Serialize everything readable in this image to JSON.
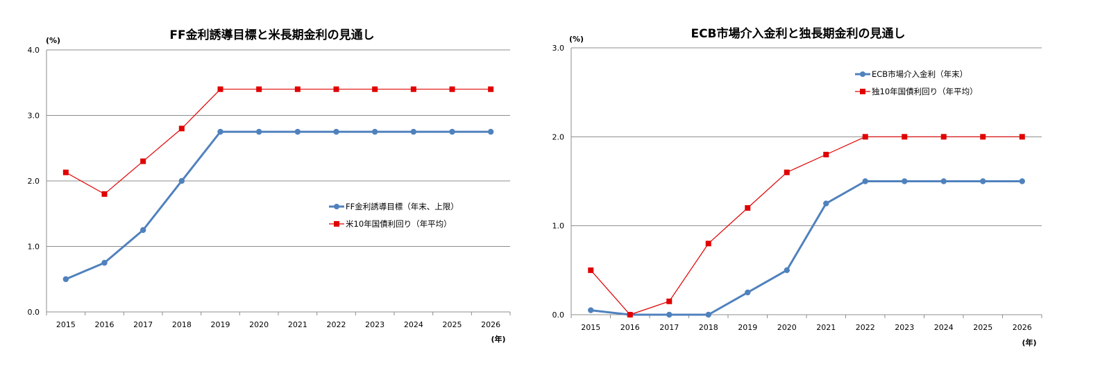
{
  "chart_data": [
    {
      "type": "line",
      "title": "FF金利誘導目標と米長期金利の見通し",
      "yunit": "(%)",
      "xunit": "(年)",
      "ylim": [
        0,
        4
      ],
      "yticks": [
        "0.0",
        "1.0",
        "2.0",
        "3.0",
        "4.0"
      ],
      "grid": true,
      "legend_position": "right-middle",
      "categories": [
        "2015",
        "2016",
        "2017",
        "2018",
        "2019",
        "2020",
        "2021",
        "2022",
        "2023",
        "2024",
        "2025",
        "2026"
      ],
      "series": [
        {
          "name": "FF金利誘導目標（年末、上限）",
          "color": "#4f81bd",
          "marker": "circle",
          "values": [
            0.5,
            0.75,
            1.25,
            2.0,
            2.75,
            2.75,
            2.75,
            2.75,
            2.75,
            2.75,
            2.75,
            2.75
          ]
        },
        {
          "name": "米10年国債利回り（年平均）",
          "color": "#e00000",
          "marker": "square",
          "values": [
            2.13,
            1.8,
            2.3,
            2.8,
            3.4,
            3.4,
            3.4,
            3.4,
            3.4,
            3.4,
            3.4,
            3.4
          ]
        }
      ]
    },
    {
      "type": "line",
      "title": "ECB市場介入金利と独長期金利の見通し",
      "yunit": "(%)",
      "xunit": "(年)",
      "ylim": [
        0,
        3
      ],
      "yticks": [
        "0.0",
        "1.0",
        "2.0",
        "3.0"
      ],
      "grid": true,
      "legend_position": "right-top",
      "categories": [
        "2015",
        "2016",
        "2017",
        "2018",
        "2019",
        "2020",
        "2021",
        "2022",
        "2023",
        "2024",
        "2025",
        "2026"
      ],
      "series": [
        {
          "name": "ECB市場介入金利（年末）",
          "color": "#4f81bd",
          "marker": "circle",
          "values": [
            0.05,
            0.0,
            0.0,
            0.0,
            0.25,
            0.5,
            1.25,
            1.5,
            1.5,
            1.5,
            1.5,
            1.5
          ]
        },
        {
          "name": "独10年国債利回り（年平均）",
          "color": "#e00000",
          "marker": "square",
          "values": [
            0.5,
            0.0,
            0.15,
            0.8,
            1.2,
            1.6,
            1.8,
            2.0,
            2.0,
            2.0,
            2.0,
            2.0
          ]
        }
      ]
    }
  ]
}
